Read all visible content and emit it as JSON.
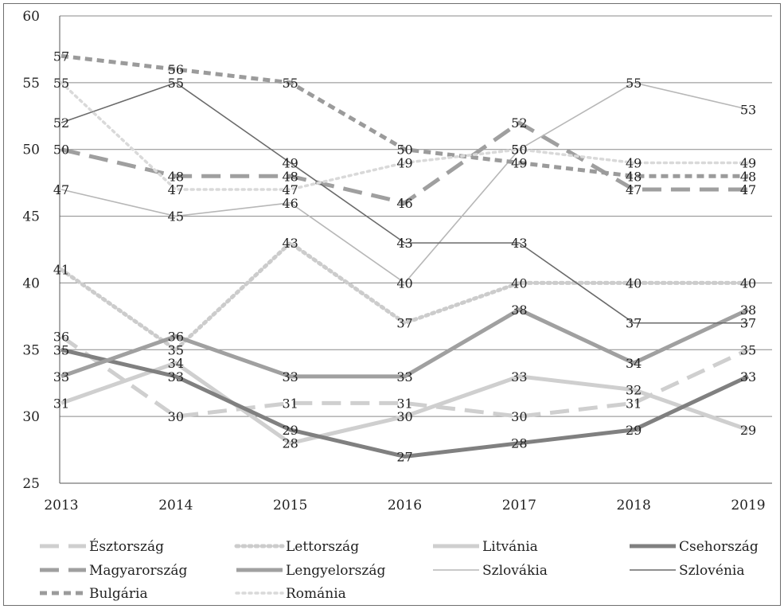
{
  "chart_data": {
    "type": "line",
    "title": "",
    "xlabel": "",
    "ylabel": "",
    "x": [
      2013,
      2014,
      2015,
      2016,
      2017,
      2018,
      2019
    ],
    "x_tick_labels": [
      "2013",
      "2014",
      "2015",
      "2016",
      "2017",
      "2018",
      "2019"
    ],
    "ylim": [
      25,
      60
    ],
    "y_ticks": [
      25,
      30,
      35,
      40,
      45,
      50,
      55,
      60
    ],
    "y_tick_labels": [
      "25",
      "30",
      "35",
      "40",
      "45",
      "50",
      "55",
      "60"
    ],
    "grid": "horizontal",
    "legend_position": "bottom",
    "data_labels": true,
    "series": [
      {
        "name": "Észtország",
        "values": [
          36,
          30,
          31,
          31,
          30,
          31,
          35
        ],
        "color": "#cfcfcf",
        "style": "long-dash",
        "width": "thick"
      },
      {
        "name": "Lettország",
        "values": [
          41,
          35,
          43,
          37,
          40,
          40,
          40
        ],
        "color": "#cccccc",
        "style": "dot",
        "width": "thick"
      },
      {
        "name": "Litvánia",
        "values": [
          31,
          34,
          28,
          30,
          33,
          32,
          29
        ],
        "color": "#cfcfcf",
        "style": "solid",
        "width": "thick"
      },
      {
        "name": "Csehország",
        "values": [
          35,
          33,
          29,
          27,
          28,
          29,
          33
        ],
        "color": "#808080",
        "style": "solid",
        "width": "thick"
      },
      {
        "name": "Magyarország",
        "values": [
          50,
          48,
          48,
          46,
          52,
          47,
          47
        ],
        "color": "#9f9f9f",
        "style": "long-dash",
        "width": "thick"
      },
      {
        "name": "Lengyelország",
        "values": [
          33,
          36,
          33,
          33,
          38,
          34,
          38
        ],
        "color": "#a0a0a0",
        "style": "solid",
        "width": "thick"
      },
      {
        "name": "Szlovákia",
        "values": [
          47,
          45,
          46,
          40,
          50,
          55,
          53
        ],
        "color": "#b7b7b7",
        "style": "solid",
        "width": "thin"
      },
      {
        "name": "Szlovénia",
        "values": [
          52,
          55,
          49,
          43,
          43,
          37,
          37
        ],
        "color": "#6a6a6a",
        "style": "solid",
        "width": "thin"
      },
      {
        "name": "Bulgária",
        "values": [
          57,
          56,
          55,
          50,
          49,
          48,
          48
        ],
        "color": "#9b9b9b",
        "style": "short-dash",
        "width": "thick"
      },
      {
        "name": "Románia",
        "values": [
          55,
          47,
          47,
          49,
          50,
          49,
          49
        ],
        "color": "#d9d9d9",
        "style": "dot",
        "width": "medium"
      }
    ]
  }
}
